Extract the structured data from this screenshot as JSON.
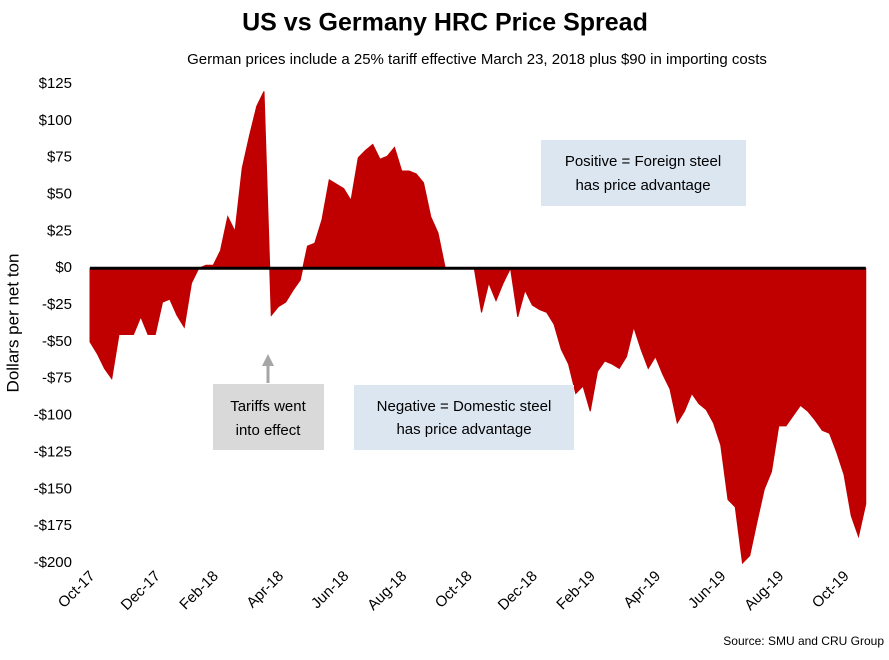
{
  "chart_data": {
    "type": "area",
    "title": "US vs Germany HRC Price Spread",
    "subtitle": "German prices include a 25% tariff effective March 23, 2018 plus $90 in importing costs",
    "y_label": "Dollars per net ton",
    "source": "Source: SMU and CRU Group",
    "color": "#c00000",
    "annotations": [
      {
        "lines": [
          "Positive = Foreign steel",
          "has price advantage"
        ]
      },
      {
        "lines": [
          "Negative = Domestic steel",
          "has price advantage"
        ]
      },
      {
        "lines": [
          "Tariffs went",
          "into effect"
        ]
      }
    ],
    "categories": [
      "Oct-17",
      null,
      null,
      null,
      null,
      null,
      null,
      null,
      null,
      "Dec-17",
      null,
      null,
      null,
      null,
      null,
      null,
      null,
      "Feb-18",
      null,
      null,
      null,
      null,
      null,
      null,
      null,
      null,
      "Apr-18",
      null,
      null,
      null,
      null,
      null,
      null,
      null,
      null,
      "Jun-18",
      null,
      null,
      null,
      null,
      null,
      null,
      null,
      "Aug-18",
      null,
      null,
      null,
      null,
      null,
      null,
      null,
      null,
      "Oct-18",
      null,
      null,
      null,
      null,
      null,
      null,
      null,
      null,
      "Dec-18",
      null,
      null,
      null,
      null,
      null,
      null,
      null,
      "Feb-19",
      null,
      null,
      null,
      null,
      null,
      null,
      null,
      null,
      "Apr-19",
      null,
      null,
      null,
      null,
      null,
      null,
      null,
      null,
      "Jun-19",
      null,
      null,
      null,
      null,
      null,
      null,
      null,
      "Aug-19",
      null,
      null,
      null,
      null,
      null,
      null,
      null,
      null,
      "Oct-19",
      null,
      null,
      null
    ],
    "values": [
      -50,
      -58,
      -68,
      -75,
      -45,
      -45,
      -45,
      -33,
      -45,
      -45,
      -23,
      -21,
      -32,
      -40,
      -10,
      0,
      2,
      2,
      12,
      35,
      25,
      68,
      90,
      110,
      120,
      -32,
      -26,
      -23,
      -15,
      -8,
      15,
      17,
      33,
      60,
      57,
      54,
      46,
      75,
      80,
      84,
      74,
      76,
      82,
      66,
      66,
      64,
      58,
      35,
      24,
      0,
      0,
      0,
      0,
      0,
      -30,
      -10,
      -22,
      -10,
      0,
      -33,
      -15,
      -25,
      -28,
      -30,
      -38,
      -55,
      -65,
      -85,
      -80,
      -97,
      -70,
      -63,
      -65,
      -68,
      -60,
      -40,
      -55,
      -68,
      -60,
      -72,
      -82,
      -105,
      -97,
      -85,
      -92,
      -96,
      -105,
      -120,
      -157,
      -162,
      -200,
      -195,
      -172,
      -150,
      -138,
      -107,
      -107,
      -100,
      -93,
      -97,
      -103,
      -110,
      -112,
      -125,
      -140,
      -168,
      -182,
      -160
    ],
    "ylim": [
      -200,
      125
    ],
    "yticks": [
      {
        "value": 125,
        "label": "$125"
      },
      {
        "value": 100,
        "label": "$100"
      },
      {
        "value": 75,
        "label": "$75"
      },
      {
        "value": 50,
        "label": "$50"
      },
      {
        "value": 25,
        "label": "$25"
      },
      {
        "value": 0,
        "label": "$0"
      },
      {
        "value": -25,
        "label": "-$25"
      },
      {
        "value": -50,
        "label": "-$50"
      },
      {
        "value": -75,
        "label": "-$75"
      },
      {
        "value": -100,
        "label": "-$100"
      },
      {
        "value": -125,
        "label": "-$125"
      },
      {
        "value": -150,
        "label": "-$150"
      },
      {
        "value": -175,
        "label": "-$175"
      },
      {
        "value": -200,
        "label": "-$200"
      }
    ],
    "grid": false
  }
}
